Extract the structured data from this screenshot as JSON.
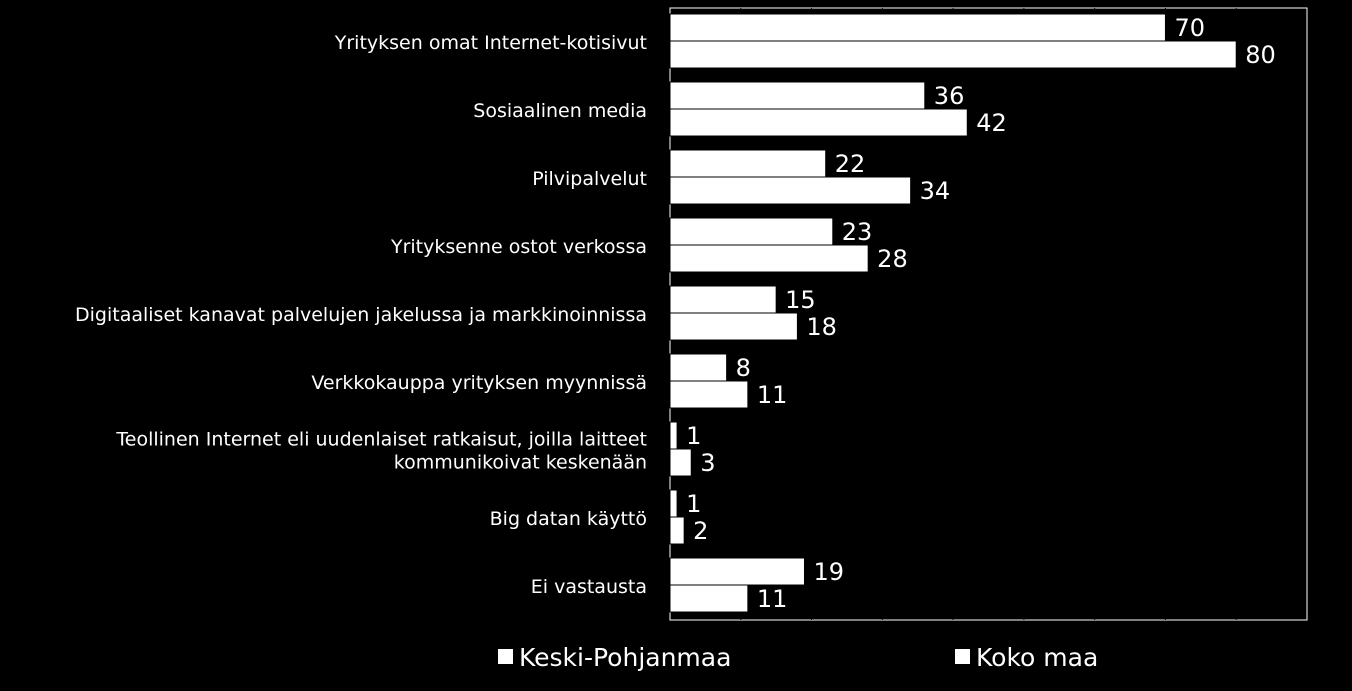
{
  "chart_data": {
    "type": "bar",
    "orientation": "horizontal",
    "categories": [
      [
        "Yrityksen omat Internet-kotisivut"
      ],
      [
        "Sosiaalinen media"
      ],
      [
        "Pilvipalvelut"
      ],
      [
        "Yrityksenne ostot verkossa"
      ],
      [
        "Digitaaliset kanavat palvelujen jakelussa ja markkinoinnissa"
      ],
      [
        "Verkkokauppa yrityksen myynnissä"
      ],
      [
        "Teollinen Internet eli uudenlaiset ratkaisut, joilla laitteet",
        "kommunikoivat keskenään"
      ],
      [
        "Big datan käyttö"
      ],
      [
        "Ei vastausta"
      ]
    ],
    "series": [
      {
        "name": "Keski-Pohjanmaa",
        "values": [
          70,
          36,
          22,
          23,
          15,
          8,
          1,
          1,
          19
        ]
      },
      {
        "name": "Koko maa",
        "values": [
          80,
          42,
          34,
          28,
          18,
          11,
          3,
          2,
          11
        ]
      }
    ],
    "xlim": [
      0,
      90
    ],
    "grid": true,
    "legend_position": "bottom",
    "colors": {
      "background": "#000000",
      "bars": "#ffffff",
      "grid": "#000000",
      "text": "#ffffff"
    }
  }
}
